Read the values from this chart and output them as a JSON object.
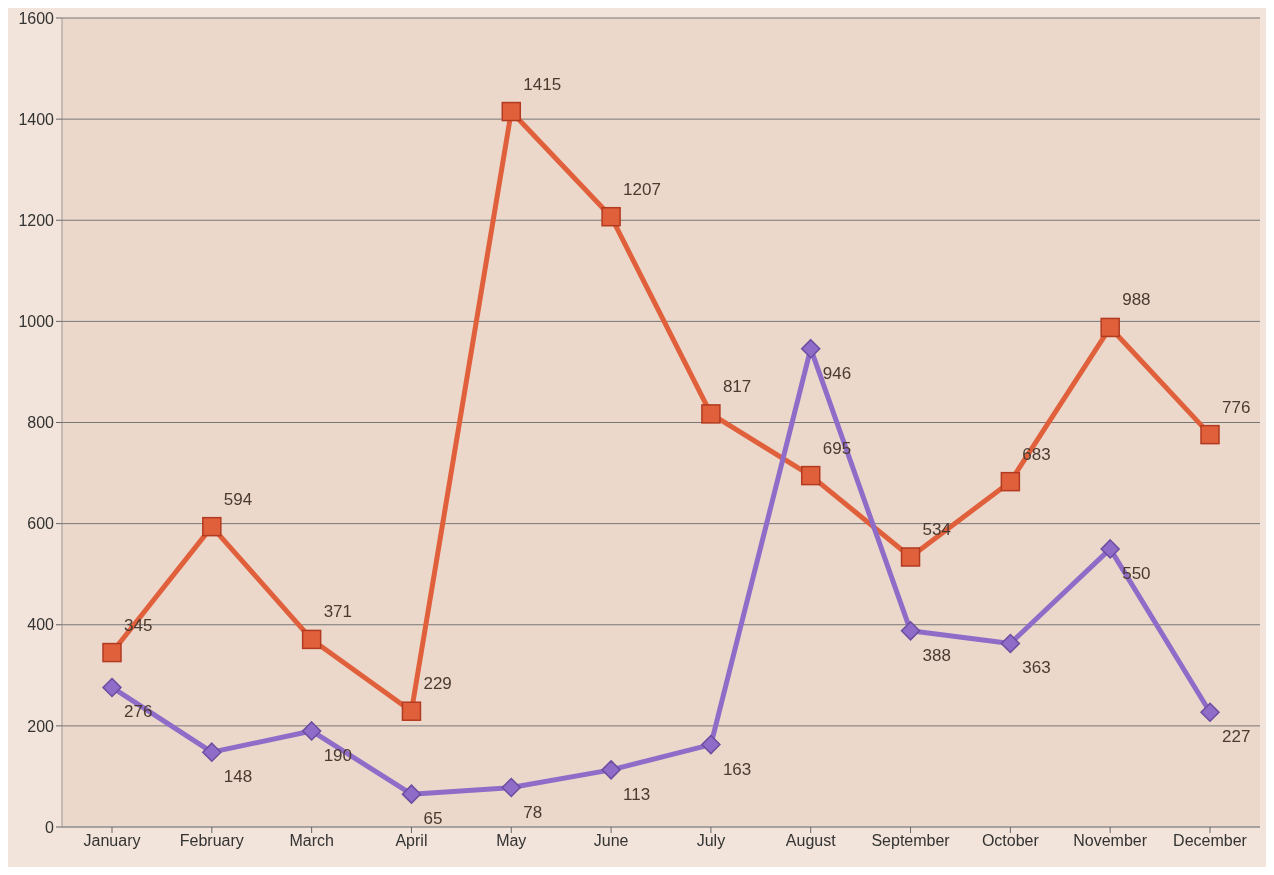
{
  "chart_data": {
    "type": "line",
    "categories": [
      "January",
      "February",
      "March",
      "April",
      "May",
      "June",
      "July",
      "August",
      "September",
      "October",
      "November",
      "December"
    ],
    "series": [
      {
        "color": "#e0603c",
        "marker": "square",
        "values": [
          345,
          594,
          371,
          229,
          1415,
          1207,
          817,
          695,
          534,
          683,
          988,
          776
        ]
      },
      {
        "color": "#8e6cc8",
        "marker": "diamond",
        "values": [
          276,
          148,
          190,
          65,
          78,
          113,
          163,
          946,
          388,
          363,
          550,
          227
        ]
      }
    ],
    "ylim": [
      0,
      1600
    ],
    "yticks": [
      0,
      200,
      400,
      600,
      800,
      1000,
      1200,
      1400,
      1600
    ],
    "grid": "y",
    "data_labels": true,
    "legend": false
  }
}
